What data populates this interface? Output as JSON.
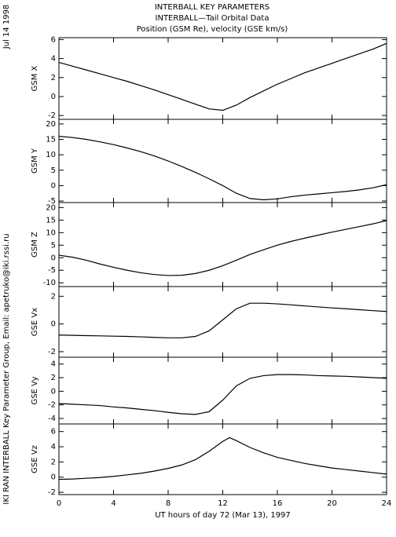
{
  "header": {
    "date": "Jul 14 1998",
    "title": "INTERBALL KEY PARAMETERS",
    "subtitle": "INTERBALL—Tail Orbital Data",
    "subtitle2": "Position (GSM Re), velocity (GSE km/s)",
    "credit": "IKI RAN INTERBALL Key Parameter Group, Email: apetruko@iki.rssi.ru"
  },
  "chart_data": [
    {
      "type": "line",
      "ylabel": "GSM X",
      "x": [
        0,
        1,
        2,
        3,
        4,
        5,
        6,
        7,
        8,
        9,
        10,
        11,
        12,
        13,
        14,
        15,
        16,
        17,
        18,
        19,
        20,
        21,
        22,
        23,
        24
      ],
      "values": [
        3.6,
        3.2,
        2.8,
        2.4,
        2.0,
        1.6,
        1.15,
        0.7,
        0.2,
        -0.3,
        -0.8,
        -1.3,
        -1.45,
        -0.9,
        -0.1,
        0.6,
        1.3,
        1.9,
        2.5,
        3.0,
        3.5,
        4.0,
        4.5,
        5.0,
        5.6
      ],
      "xlim": [
        0,
        24
      ],
      "xticks": [
        0,
        4,
        8,
        12,
        16,
        20,
        24
      ],
      "ylim": [
        -2.4,
        6.2
      ],
      "yticks": [
        -2,
        0,
        2,
        4,
        6
      ],
      "color": "#000000"
    },
    {
      "type": "line",
      "ylabel": "GSM Y",
      "x": [
        0,
        1,
        2,
        3,
        4,
        5,
        6,
        7,
        8,
        9,
        10,
        11,
        12,
        13,
        14,
        15,
        16,
        17,
        18,
        19,
        20,
        21,
        22,
        23,
        24
      ],
      "values": [
        16,
        15.6,
        15,
        14.2,
        13.3,
        12.2,
        11,
        9.6,
        8,
        6.2,
        4.3,
        2.2,
        0,
        -2.5,
        -4.2,
        -4.6,
        -4.3,
        -3.6,
        -3.1,
        -2.7,
        -2.3,
        -1.9,
        -1.4,
        -0.7,
        0.3
      ],
      "xlim": [
        0,
        24
      ],
      "xticks": [
        0,
        4,
        8,
        12,
        16,
        20,
        24
      ],
      "ylim": [
        -5.5,
        21.5
      ],
      "yticks": [
        -5,
        0,
        5,
        10,
        15,
        20
      ],
      "color": "#000000"
    },
    {
      "type": "line",
      "ylabel": "GSM Z",
      "x": [
        0,
        1,
        2,
        3,
        4,
        5,
        6,
        7,
        8,
        9,
        10,
        11,
        12,
        13,
        14,
        15,
        16,
        17,
        18,
        19,
        20,
        21,
        22,
        23,
        24
      ],
      "values": [
        1,
        0.2,
        -1,
        -2.5,
        -3.8,
        -5,
        -6,
        -6.7,
        -7.1,
        -7,
        -6.3,
        -5,
        -3.2,
        -1,
        1.3,
        3.2,
        5,
        6.5,
        7.8,
        9,
        10.2,
        11.3,
        12.4,
        13.5,
        14.8
      ],
      "xlim": [
        0,
        24
      ],
      "xticks": [
        0,
        4,
        8,
        12,
        16,
        20,
        24
      ],
      "ylim": [
        -11.5,
        22
      ],
      "yticks": [
        -10,
        -5,
        0,
        5,
        10,
        15,
        20
      ],
      "color": "#000000"
    },
    {
      "type": "line",
      "ylabel": "GSE Vx",
      "x": [
        0,
        1,
        2,
        3,
        4,
        5,
        6,
        7,
        8,
        9,
        10,
        11,
        12,
        13,
        14,
        15,
        16,
        17,
        18,
        19,
        20,
        21,
        22,
        23,
        24
      ],
      "values": [
        -0.8,
        -0.82,
        -0.84,
        -0.86,
        -0.88,
        -0.9,
        -0.93,
        -0.97,
        -1,
        -1,
        -0.9,
        -0.5,
        0.3,
        1.1,
        1.5,
        1.5,
        1.45,
        1.38,
        1.3,
        1.23,
        1.16,
        1.1,
        1.03,
        0.96,
        0.9
      ],
      "xlim": [
        0,
        24
      ],
      "xticks": [
        0,
        4,
        8,
        12,
        16,
        20,
        24
      ],
      "ylim": [
        -2.4,
        2.7
      ],
      "yticks": [
        -2,
        0,
        2
      ],
      "color": "#000000"
    },
    {
      "type": "line",
      "ylabel": "GSE Vy",
      "x": [
        0,
        1,
        2,
        3,
        4,
        5,
        6,
        7,
        8,
        9,
        10,
        11,
        12,
        13,
        14,
        15,
        16,
        17,
        18,
        19,
        20,
        21,
        22,
        23,
        24
      ],
      "values": [
        -1.8,
        -1.9,
        -2.0,
        -2.1,
        -2.3,
        -2.45,
        -2.65,
        -2.85,
        -3.1,
        -3.3,
        -3.4,
        -3.0,
        -1.3,
        0.8,
        1.9,
        2.3,
        2.45,
        2.45,
        2.4,
        2.3,
        2.25,
        2.2,
        2.1,
        2.0,
        1.9
      ],
      "xlim": [
        0,
        24
      ],
      "xticks": [
        0,
        4,
        8,
        12,
        16,
        20,
        24
      ],
      "ylim": [
        -4.8,
        5
      ],
      "yticks": [
        -4,
        -2,
        0,
        2,
        4
      ],
      "color": "#000000"
    },
    {
      "type": "line",
      "ylabel": "GSE Vz",
      "xlabel": "UT hours of day  72 (Mar 13), 1997",
      "x": [
        0,
        1,
        2,
        3,
        4,
        5,
        6,
        7,
        8,
        9,
        10,
        11,
        12,
        12.5,
        13,
        14,
        15,
        16,
        17,
        18,
        19,
        20,
        21,
        22,
        23,
        24
      ],
      "values": [
        -0.3,
        -0.25,
        -0.15,
        -0.05,
        0.1,
        0.3,
        0.5,
        0.8,
        1.15,
        1.6,
        2.3,
        3.4,
        4.7,
        5.2,
        4.8,
        3.9,
        3.2,
        2.6,
        2.2,
        1.8,
        1.5,
        1.2,
        1.0,
        0.8,
        0.6,
        0.4
      ],
      "xlim": [
        0,
        24
      ],
      "xticks": [
        0,
        4,
        8,
        12,
        16,
        20,
        24
      ],
      "ylim": [
        -2.3,
        7
      ],
      "yticks": [
        -2,
        0,
        2,
        4,
        6
      ],
      "color": "#000000"
    }
  ]
}
